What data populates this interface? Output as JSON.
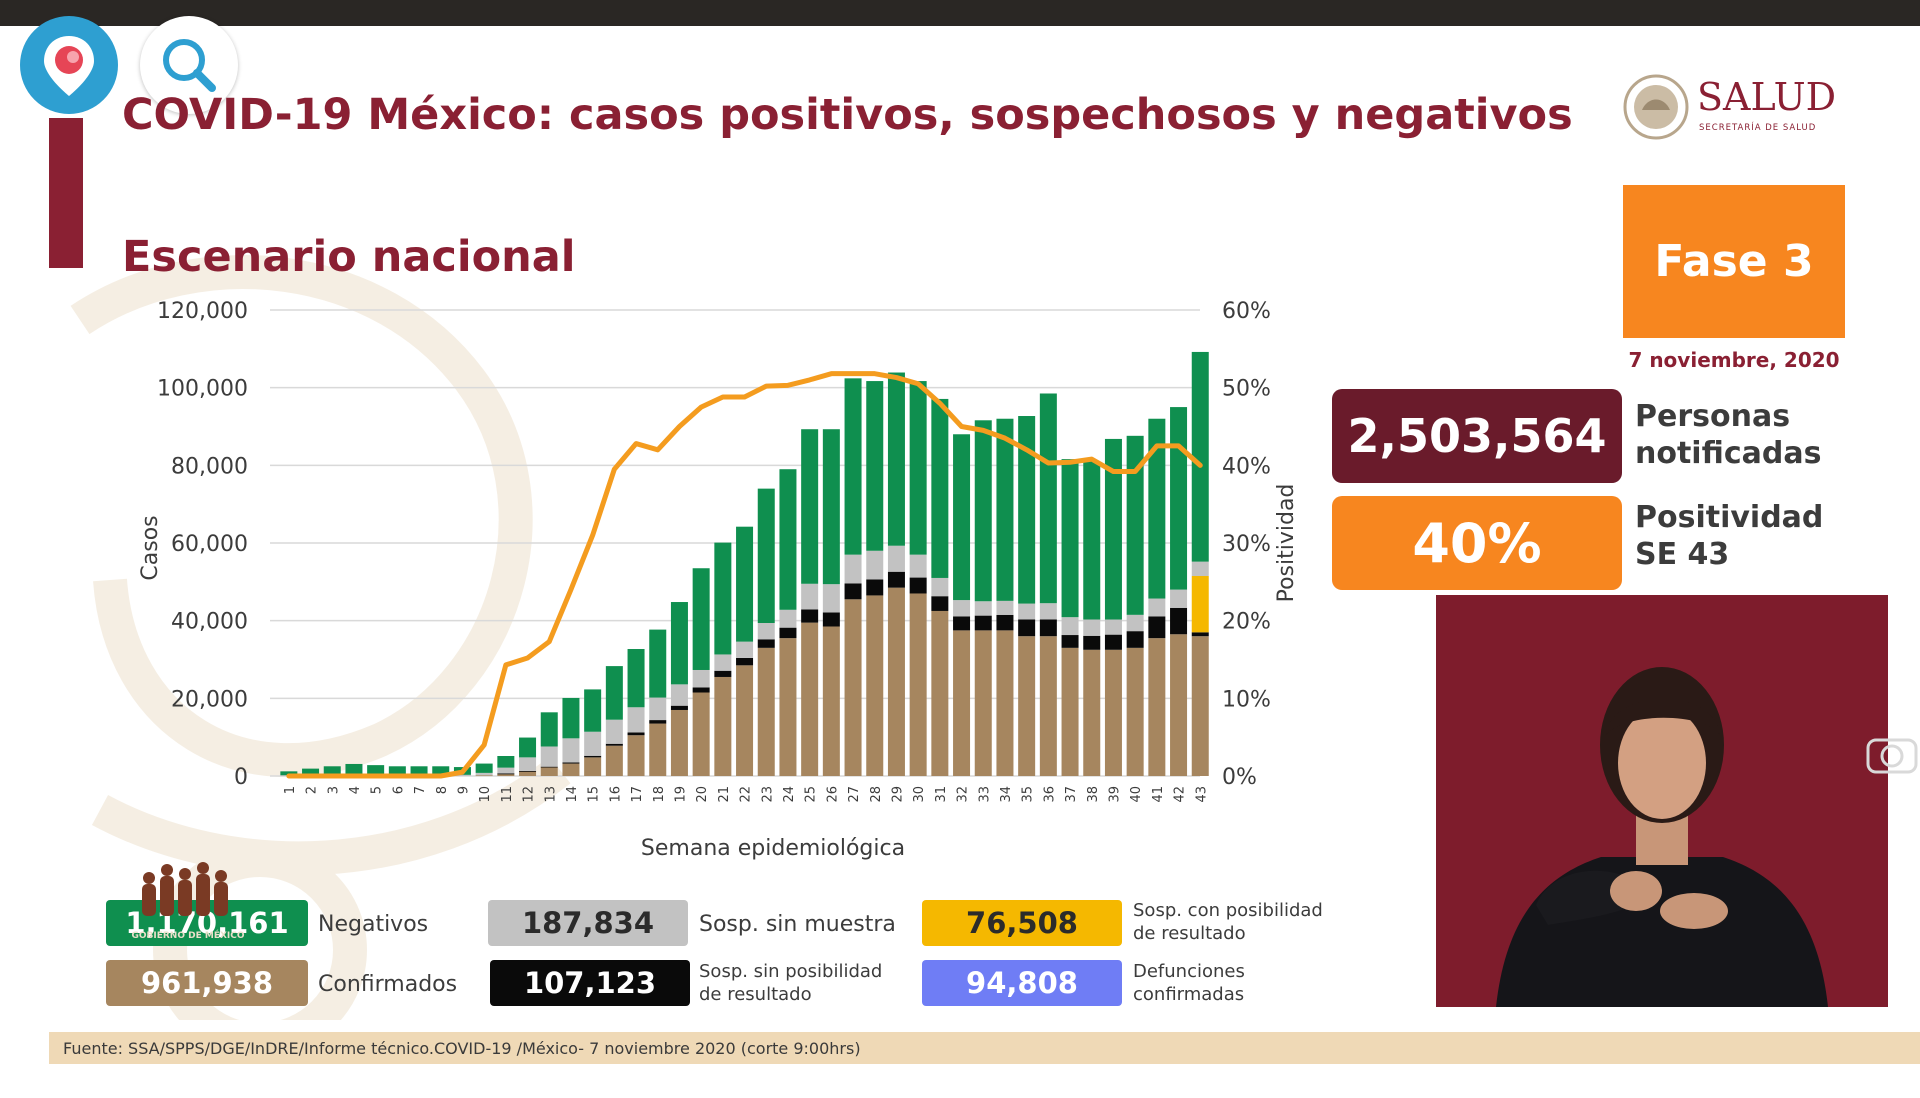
{
  "title": "COVID-19 México: casos positivos, sospechosos y negativos",
  "subtitle": "Escenario nacional",
  "logo": {
    "name": "SALUD",
    "secretaria": "SECRETARÍA DE SALUD"
  },
  "phase": {
    "label": "Fase 3",
    "date": "7 noviembre, 2020"
  },
  "stats": {
    "personas_value": "2,503,564",
    "personas_label_1": "Personas",
    "personas_label_2": "notificadas",
    "positividad_value": "40%",
    "positividad_label_1": "Positividad",
    "positividad_label_2": "SE 43"
  },
  "legend": {
    "negativos": {
      "value": "1,170,161",
      "label": "Negativos",
      "color": "#0f8f4f"
    },
    "confirmados": {
      "value": "961,938",
      "label": "Confirmados",
      "color": "#a6865f"
    },
    "sosp_sin_muestra": {
      "value": "187,834",
      "label": "Sosp. sin muestra",
      "color": "#c2c2c2"
    },
    "sosp_sin_posibilidad": {
      "value": "107,123",
      "label_1": "Sosp. sin posibilidad",
      "label_2": "de resultado",
      "color": "#0a0a0a"
    },
    "sosp_con_posibilidad": {
      "value": "76,508",
      "label_1": "Sosp. con posibilidad",
      "label_2": "de resultado",
      "color": "#f5b800"
    },
    "defunciones": {
      "value": "94,808",
      "label_1": "Defunciones",
      "label_2": "confirmadas",
      "color": "#6f7df5"
    }
  },
  "gobmx_logo_text": "GOBIERNO DE MÉXICO",
  "footer": "Fuente: SSA/SPPS/DGE/InDRE/Informe técnico.COVID-19 /México- 7 noviembre 2020 (corte 9:00hrs)",
  "icons": {
    "periscope": "location-pin-icon",
    "search": "search-icon",
    "camera": "camera-icon"
  },
  "chart_data": {
    "type": "bar",
    "stacked": true,
    "xlabel": "Semana epidemiológica",
    "ylabel": "Casos",
    "y2label": "Positividad",
    "ylim": [
      0,
      120000
    ],
    "y2lim": [
      0,
      60
    ],
    "y_ticks": [
      "0",
      "20,000",
      "40,000",
      "60,000",
      "80,000",
      "100,000",
      "120,000"
    ],
    "y2_ticks": [
      "0%",
      "10%",
      "20%",
      "30%",
      "40%",
      "50%",
      "60%"
    ],
    "grid": true,
    "categories": [
      "1",
      "2",
      "3",
      "4",
      "5",
      "6",
      "7",
      "8",
      "9",
      "10",
      "11",
      "12",
      "13",
      "14",
      "15",
      "16",
      "17",
      "18",
      "19",
      "20",
      "21",
      "22",
      "23",
      "24",
      "25",
      "26",
      "27",
      "28",
      "29",
      "30",
      "31",
      "32",
      "33",
      "34",
      "35",
      "36",
      "37",
      "38",
      "39",
      "40",
      "41",
      "42",
      "43"
    ],
    "series": [
      {
        "name": "Confirmados",
        "color": "#a6865f",
        "values": [
          0,
          0,
          0,
          0,
          0,
          0,
          0,
          0,
          0,
          200,
          600,
          1200,
          2200,
          3200,
          4800,
          7800,
          10500,
          13500,
          17000,
          21500,
          25500,
          28500,
          33000,
          35500,
          39500,
          38500,
          45500,
          46500,
          48500,
          47000,
          42500,
          37500,
          37500,
          37500,
          36000,
          36000,
          33000,
          32500,
          32500,
          33000,
          35500,
          36500,
          36000
        ]
      },
      {
        "name": "Sosp. sin posibilidad de resultado",
        "color": "#0a0a0a",
        "values": [
          0,
          0,
          0,
          0,
          0,
          0,
          0,
          0,
          0,
          0,
          50,
          100,
          200,
          300,
          400,
          500,
          700,
          900,
          1100,
          1300,
          1600,
          1900,
          2200,
          2700,
          3400,
          3600,
          4100,
          4100,
          4100,
          4100,
          3800,
          3600,
          3800,
          4000,
          4300,
          4300,
          3300,
          3600,
          3900,
          4300,
          5600,
          6800,
          1000
        ]
      },
      {
        "name": "Sosp. con posibilidad de resultado",
        "color": "#f5b800",
        "values": [
          0,
          0,
          0,
          0,
          0,
          0,
          0,
          0,
          0,
          0,
          0,
          0,
          0,
          0,
          0,
          0,
          0,
          0,
          0,
          0,
          0,
          0,
          0,
          0,
          0,
          0,
          0,
          0,
          0,
          0,
          0,
          0,
          0,
          0,
          0,
          0,
          0,
          0,
          0,
          0,
          0,
          0,
          14500
        ]
      },
      {
        "name": "Sosp. sin muestra",
        "color": "#c2c2c2",
        "values": [
          200,
          300,
          300,
          300,
          200,
          200,
          200,
          200,
          300,
          600,
          1500,
          3500,
          5200,
          6200,
          6200,
          6200,
          6500,
          5800,
          5500,
          4500,
          4200,
          4200,
          4200,
          4600,
          6600,
          7300,
          7400,
          7400,
          6700,
          5900,
          4700,
          4200,
          3700,
          3600,
          4100,
          4200,
          4600,
          4200,
          3900,
          4200,
          4600,
          4700,
          3700
        ]
      },
      {
        "name": "Negativos",
        "color": "#0f8f4f",
        "values": [
          1000,
          1600,
          2200,
          2800,
          2600,
          2300,
          2300,
          2300,
          2000,
          2400,
          3000,
          5100,
          8800,
          10400,
          10900,
          13800,
          15000,
          17500,
          21200,
          26200,
          28800,
          29600,
          34600,
          36200,
          39800,
          39900,
          45400,
          43700,
          44600,
          44700,
          46100,
          42700,
          46600,
          46900,
          48300,
          54000,
          40700,
          40700,
          46500,
          46100,
          46300,
          47000,
          54000
        ]
      }
    ],
    "positividad": {
      "name": "Positividad",
      "color": "#f49c1f",
      "values": [
        0,
        0,
        0,
        0,
        0,
        0,
        0,
        0,
        0.5,
        4,
        14.3,
        15.2,
        17.3,
        24,
        31,
        39.5,
        42.8,
        42,
        45,
        47.5,
        48.8,
        48.8,
        50.2,
        50.3,
        51,
        51.8,
        51.8,
        51.8,
        51.3,
        50.5,
        48,
        45,
        44.5,
        43.5,
        42,
        40.3,
        40.4,
        40.8,
        39.2,
        39.2,
        42.5,
        42.5,
        40
      ]
    }
  }
}
